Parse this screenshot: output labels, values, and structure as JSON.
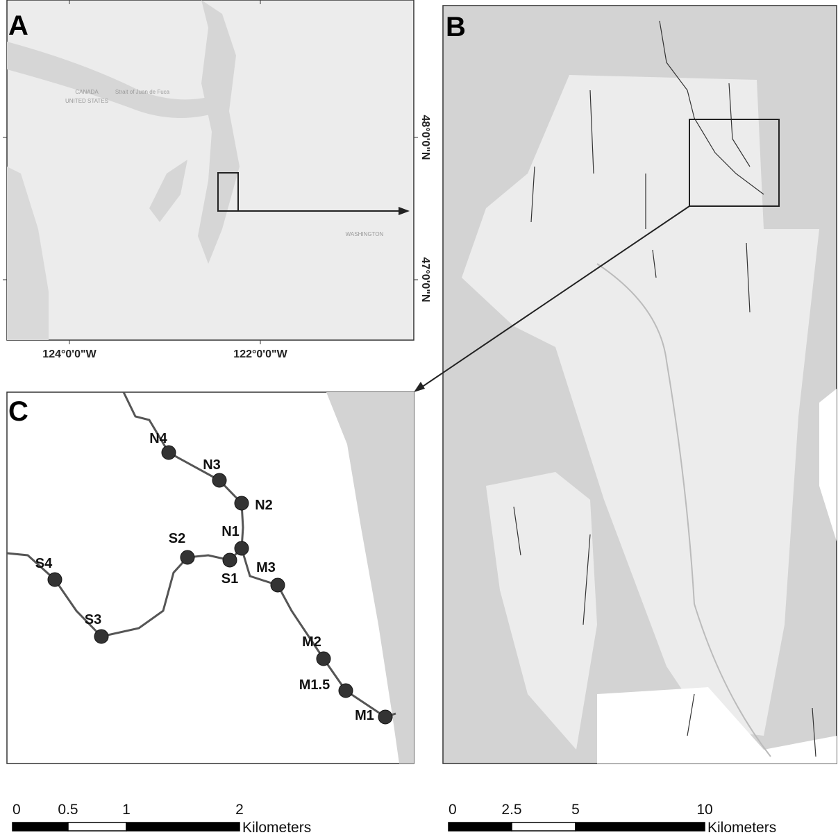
{
  "panels": {
    "a": "A",
    "b": "B",
    "c": "C"
  },
  "map_a": {
    "labels": {
      "canada": "CANADA",
      "united_states": "UNITED STATES",
      "strait": "Strait of Juan de Fuca",
      "washington": "WASHINGTON"
    },
    "x_labels": [
      "124°0'0\"W",
      "122°0'0\"W"
    ],
    "y_labels": [
      "48°0'0\"N",
      "47°0'0\"N"
    ]
  },
  "sites": [
    "N4",
    "N3",
    "N2",
    "N1",
    "S2",
    "S1",
    "M3",
    "S4",
    "S3",
    "M2",
    "M1.5",
    "M1"
  ],
  "scale_c": {
    "ticks": [
      "0",
      "0.5",
      "1",
      "2"
    ],
    "unit": "Kilometers"
  },
  "scale_b": {
    "ticks": [
      "0",
      "2.5",
      "5",
      "10"
    ],
    "unit": "Kilometers"
  }
}
